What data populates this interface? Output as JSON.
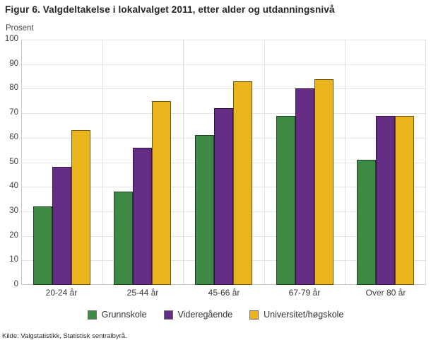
{
  "title": "Figur 6. Valgdeltakelse i lokalvalget 2011, etter alder og utdanningsnivå",
  "y_axis_title": "Prosent",
  "source": "Kilde: Valgstatistikk, Statistisk sentralbyrå.",
  "colors": {
    "background": "#ffffff",
    "gridline": "#e3e3e3",
    "axis": "#c6c6c6",
    "title_text": "#262626",
    "tick_text": "#3f3f3f"
  },
  "chart_data": {
    "type": "bar",
    "title": "Figur 6. Valgdeltakelse i lokalvalget 2011, etter alder og utdanningsnivå",
    "xlabel": "",
    "ylabel": "Prosent",
    "categories": [
      "20-24 år",
      "25-44 år",
      "45-66 år",
      "67-79 år",
      "Over 80 år"
    ],
    "series": [
      {
        "name": "Grunnskole",
        "color": "#3e8943",
        "border_color": "#1d4220",
        "values": [
          32,
          38,
          61,
          69,
          51
        ]
      },
      {
        "name": "Videregående",
        "color": "#662d85",
        "border_color": "#331245",
        "values": [
          48,
          56,
          72,
          80,
          69
        ]
      },
      {
        "name": "Universitet/høgskole",
        "color": "#eab41c",
        "border_color": "#6e5410",
        "values": [
          63,
          75,
          83,
          84,
          69
        ]
      }
    ],
    "ylim": [
      0,
      100
    ],
    "yticks": [
      0,
      10,
      20,
      30,
      40,
      50,
      60,
      70,
      80,
      90,
      100
    ],
    "grid": true,
    "legend_position": "bottom"
  }
}
